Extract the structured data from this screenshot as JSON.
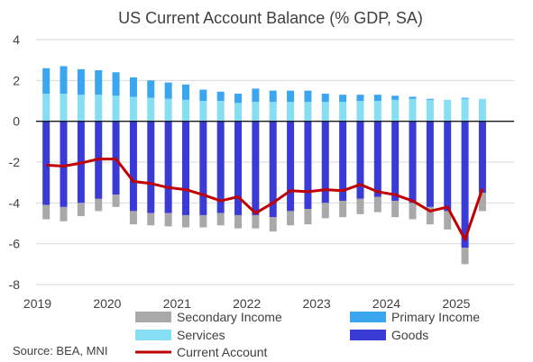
{
  "chart_data": {
    "type": "bar",
    "title": "US Current Account Balance (% GDP, SA)",
    "source": "Source: BEA, MNI",
    "ylim": [
      -8,
      4
    ],
    "yticks": [
      4,
      2,
      0,
      -2,
      -4,
      -6,
      -8
    ],
    "ytick_labels": [
      "4",
      "2",
      "0",
      "-2",
      "-4",
      "-6",
      "-8"
    ],
    "xtick_labels": [
      "2019",
      "2020",
      "2021",
      "2022",
      "2023",
      "2024",
      "2025"
    ],
    "grid": true,
    "legend_position": "bottom",
    "categories": [
      "2019Q1",
      "2019Q2",
      "2019Q3",
      "2019Q4",
      "2020Q1",
      "2020Q2",
      "2020Q3",
      "2020Q4",
      "2021Q1",
      "2021Q2",
      "2021Q3",
      "2021Q4",
      "2022Q1",
      "2022Q2",
      "2022Q3",
      "2022Q4",
      "2023Q1",
      "2023Q2",
      "2023Q3",
      "2023Q4",
      "2024Q1",
      "2024Q2",
      "2024Q3",
      "2024Q4",
      "2025Q1",
      "2025Q2"
    ],
    "series": [
      {
        "name": "Goods",
        "kind": "bar",
        "color": "#3a3ad6",
        "values": [
          -4.1,
          -4.2,
          -4.0,
          -3.8,
          -3.6,
          -4.4,
          -4.5,
          -4.5,
          -4.6,
          -4.6,
          -4.5,
          -4.6,
          -4.6,
          -4.7,
          -4.4,
          -4.3,
          -4.0,
          -3.9,
          -3.8,
          -3.7,
          -3.9,
          -4.0,
          -4.2,
          -4.4,
          -6.2,
          -3.5
        ]
      },
      {
        "name": "Services",
        "kind": "bar",
        "color": "#85def2",
        "values": [
          1.35,
          1.35,
          1.3,
          1.3,
          1.25,
          1.2,
          1.15,
          1.1,
          1.05,
          1.0,
          1.0,
          0.9,
          0.95,
          0.95,
          0.95,
          0.95,
          0.95,
          0.95,
          1.0,
          1.0,
          1.05,
          1.1,
          1.05,
          1.05,
          1.1,
          1.1
        ]
      },
      {
        "name": "Primary Income",
        "kind": "bar",
        "color": "#3aa6f0",
        "values": [
          1.25,
          1.35,
          1.25,
          1.2,
          1.15,
          0.95,
          0.85,
          0.8,
          0.75,
          0.55,
          0.45,
          0.45,
          0.65,
          0.55,
          0.55,
          0.55,
          0.4,
          0.35,
          0.3,
          0.3,
          0.2,
          0.1,
          0.05,
          0.0,
          0.05,
          0.0
        ]
      },
      {
        "name": "Secondary Income",
        "kind": "bar",
        "color": "#a9a9a9",
        "values": [
          -0.7,
          -0.7,
          -0.65,
          -0.6,
          -0.6,
          -0.65,
          -0.6,
          -0.65,
          -0.6,
          -0.6,
          -0.6,
          -0.65,
          -0.65,
          -0.7,
          -0.7,
          -0.75,
          -0.75,
          -0.8,
          -0.75,
          -0.75,
          -0.8,
          -0.8,
          -0.85,
          -0.9,
          -0.8,
          -0.9
        ]
      },
      {
        "name": "Current Account",
        "kind": "line",
        "color": "#c00000",
        "values": [
          -2.15,
          -2.2,
          -2.05,
          -1.85,
          -1.85,
          -2.95,
          -3.05,
          -3.25,
          -3.35,
          -3.6,
          -3.9,
          -3.7,
          -4.5,
          -4.0,
          -3.4,
          -3.45,
          -3.35,
          -3.4,
          -3.1,
          -3.45,
          -3.6,
          -3.9,
          -4.4,
          -4.2,
          -5.8,
          -3.3
        ]
      }
    ]
  }
}
